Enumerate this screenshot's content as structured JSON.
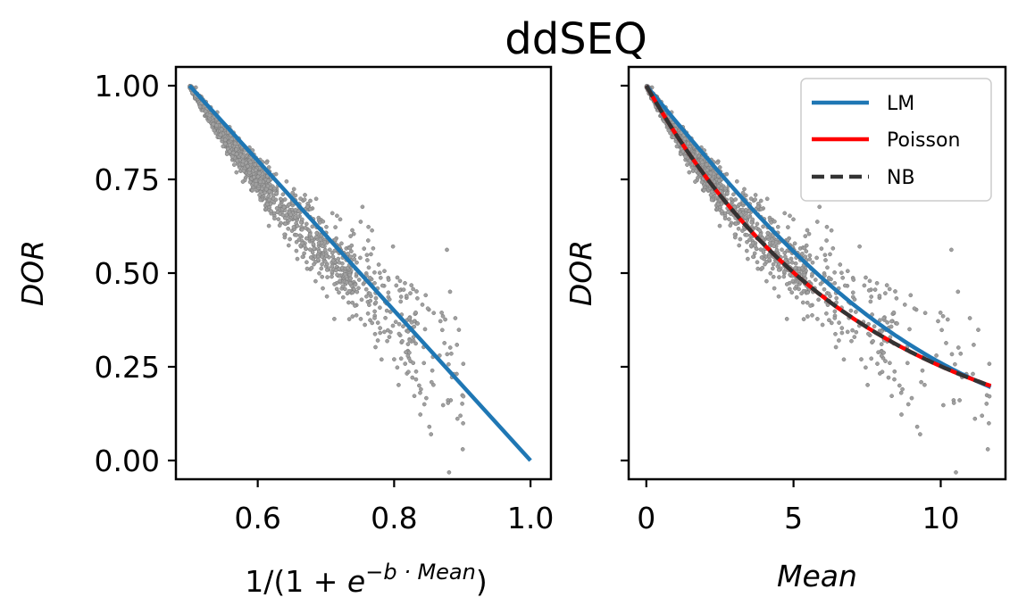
{
  "title": "ddSEQ",
  "chart_data": [
    {
      "type": "scatter",
      "xlabel_parts": {
        "prefix": "1/(1 + ",
        "base": "e",
        "exponent": "−b · Mean",
        "suffix": ")"
      },
      "ylabel": "DOR",
      "xlim": [
        0.48,
        1.03
      ],
      "ylim": [
        -0.05,
        1.05
      ],
      "xticks": [
        0.6,
        0.8,
        1.0
      ],
      "xtick_labels": [
        "0.6",
        "0.8",
        "1.0"
      ],
      "yticks": [
        0.0,
        0.25,
        0.5,
        0.75,
        1.0
      ],
      "ytick_labels": [
        "0.00",
        "0.25",
        "0.50",
        "0.75",
        "1.00"
      ],
      "scatter_color": "#a0a0a0",
      "line": {
        "name": "LM",
        "color": "#1f77b4",
        "x": [
          0.5,
          1.0
        ],
        "y": [
          1.0,
          0.0
        ]
      }
    },
    {
      "type": "scatter",
      "xlabel": "Mean",
      "ylabel": "DOR",
      "xlim": [
        -0.6,
        12.2
      ],
      "ylim": [
        -0.05,
        1.05
      ],
      "xticks": [
        0,
        5,
        10
      ],
      "xtick_labels": [
        "0",
        "5",
        "10"
      ],
      "yticks": [
        0.0,
        0.25,
        0.5,
        0.75,
        1.0
      ],
      "scatter_color": "#a0a0a0",
      "legend_position": "upper-right",
      "series": [
        {
          "name": "LM",
          "color": "#1f77b4",
          "style": "solid",
          "lm_b": 0.19
        },
        {
          "name": "Poisson",
          "color": "#ff0000",
          "style": "solid",
          "k": 0.138
        },
        {
          "name": "NB",
          "color": "#333333",
          "style": "dashed",
          "k": 0.138
        }
      ]
    }
  ]
}
